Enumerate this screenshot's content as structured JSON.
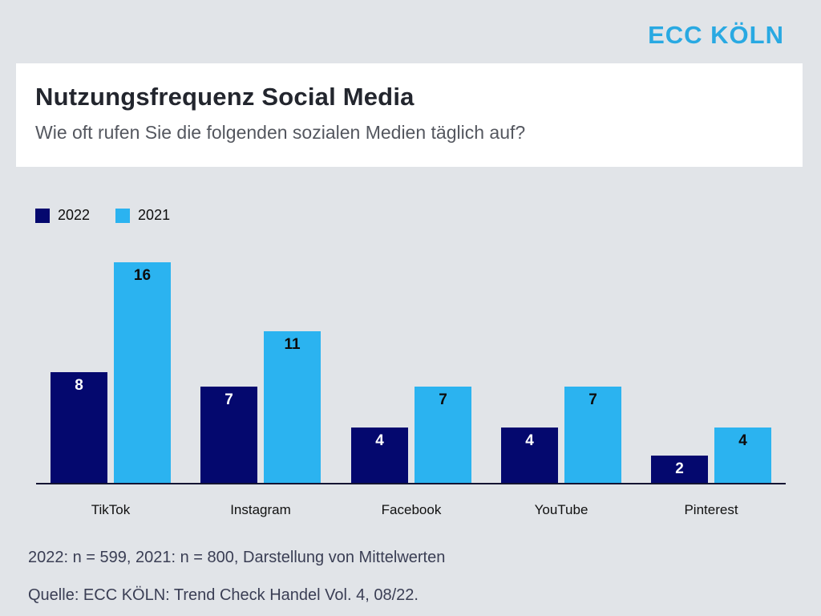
{
  "logo": {
    "text": "ECC KÖLN",
    "color": "#29a9e2"
  },
  "header": {
    "title": "Nutzungsfrequenz Social Media",
    "subtitle": "Wie oft rufen Sie die folgenden sozialen Medien täglich auf?"
  },
  "legend": {
    "items": [
      {
        "label": "2022",
        "color": "#04086e"
      },
      {
        "label": "2021",
        "color": "#2bb3f0"
      }
    ]
  },
  "chart_data": {
    "type": "bar",
    "categories": [
      "TikTok",
      "Instagram",
      "Facebook",
      "YouTube",
      "Pinterest"
    ],
    "series": [
      {
        "name": "2022",
        "color": "#04086e",
        "label_color": "#ffffff",
        "values": [
          8,
          7,
          4,
          4,
          2
        ]
      },
      {
        "name": "2021",
        "color": "#2bb3f0",
        "label_color": "#0d0d0d",
        "values": [
          16,
          11,
          7,
          7,
          4
        ]
      }
    ],
    "title": "Nutzungsfrequenz Social Media",
    "subtitle": "Wie oft rufen Sie die folgenden sozialen Medien täglich auf?",
    "xlabel": "",
    "ylabel": "",
    "ylim": [
      0,
      17
    ],
    "grid": false,
    "y_axis_visible": false,
    "legend_position": "top-left",
    "value_labels": true,
    "axis_line_color": "#141432"
  },
  "footer": {
    "note": "2022: n = 599, 2021: n = 800, Darstellung von Mittelwerten",
    "source": "Quelle: ECC KÖLN: Trend Check Handel Vol. 4, 08/22."
  },
  "colors": {
    "background": "#e1e4e8",
    "panel": "#ffffff",
    "title": "#23262e",
    "subtitle": "#54575f",
    "footer": "#3a3e54"
  }
}
